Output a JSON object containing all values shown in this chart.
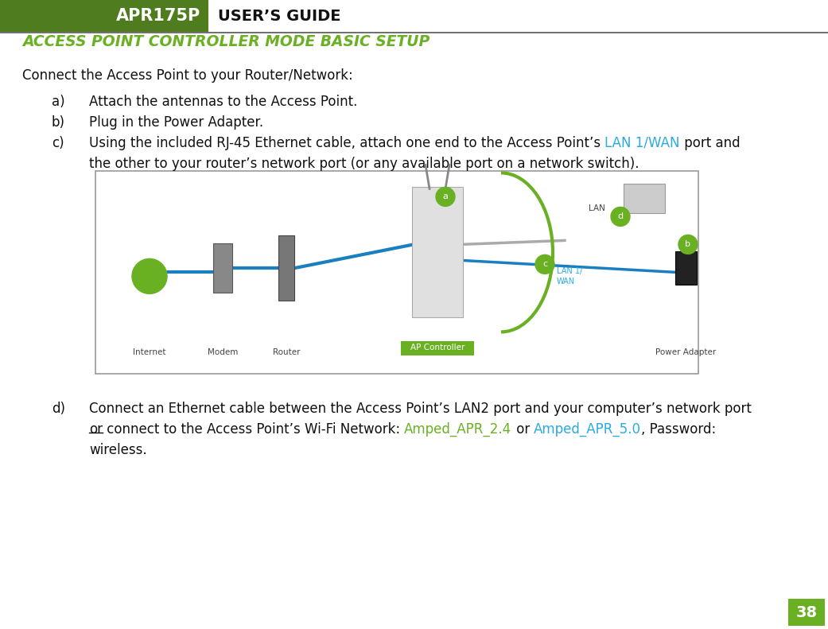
{
  "bg_color": "#ffffff",
  "header_green_color": "#4e7c1e",
  "header_text_apr": "APR175P",
  "header_text_guide": "USER’S GUIDE",
  "title_text": "ACCESS POINT CONTROLLER MODE BASIC SETUP",
  "title_color": "#6ab023",
  "intro_text": "Connect the Access Point to your Router/Network:",
  "item_a": "Attach the antennas to the Access Point.",
  "item_b": "Plug in the Power Adapter.",
  "item_c_pre": "Using the included RJ-45 Ethernet cable, attach one end to the Access Point’s ",
  "item_c_colored": "LAN 1/WAN",
  "item_c_colored_color": "#29abe2",
  "item_c_post": " port and",
  "item_c_line2": "the other to your router’s network port (or any available port on a network switch).",
  "item_d_line1": "Connect an Ethernet cable between the Access Point’s LAN2 port and your computer’s network port",
  "item_d_or": "or",
  "item_d_middle": " connect to the Access Point’s Wi-Fi Network: ",
  "item_d_net1": "Amped_APR_2.4",
  "item_d_net1_color": "#6ab023",
  "item_d_or2": " or ",
  "item_d_net2": "Amped_APR_5.0",
  "item_d_net2_color": "#29abe2",
  "item_d_pw": ", Password:",
  "item_d_line3": "wireless.",
  "page_number": "38",
  "page_number_bg": "#6ab023",
  "page_number_color": "#ffffff",
  "separator_color": "#555555",
  "image_border_color": "#999999",
  "green_circle_color": "#6ab023",
  "blue_cable_color": "#1a7fc1",
  "lan1wan_label_color": "#29abe2",
  "ap_controller_bg": "#6ab023"
}
